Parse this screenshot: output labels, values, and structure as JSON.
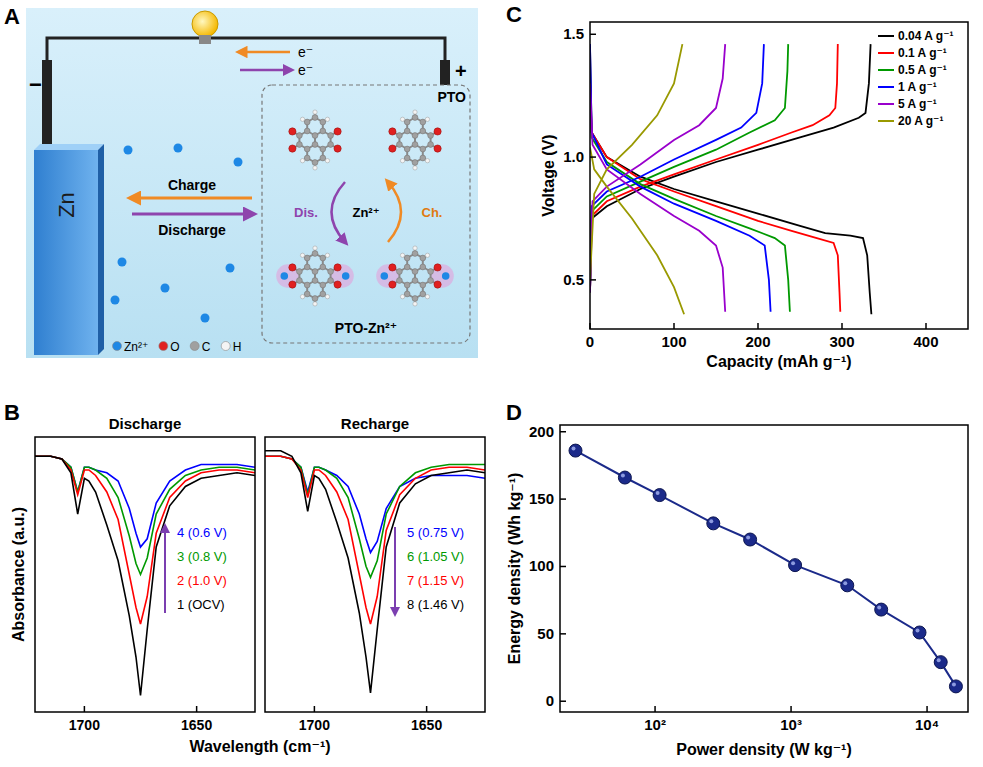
{
  "diagram": {
    "panel": "A",
    "anode_label": "Zn",
    "anode_sign": "−",
    "cathode_sign": "+",
    "electrons": [
      "e⁻",
      "e⁻"
    ],
    "charge": "Charge",
    "discharge": "Discharge",
    "cathode_material": "PTO",
    "cycle_ion": "Zn²⁺",
    "cycle_discharge": "Dis.",
    "cycle_charge": "Ch.",
    "discharged_product": "PTO-Zn²⁺",
    "legend": [
      {
        "label": "Zn²⁺",
        "color": "#1e88e5"
      },
      {
        "label": "O",
        "color": "#e02020"
      },
      {
        "label": "C",
        "color": "#a0a0a0"
      },
      {
        "label": "H",
        "color": "#f4f4f4"
      }
    ]
  },
  "chart_data": [
    {
      "type": "line",
      "panel": "B",
      "title": "Discharge",
      "x_label": "Wavelength (cm⁻¹)",
      "y_label": "Absorbance (a.u.)",
      "tick_labels": "x",
      "legend": "right",
      "x": [
        1722,
        1715,
        1710,
        1706,
        1703,
        1700,
        1698,
        1695,
        1690,
        1685,
        1680,
        1677,
        1675,
        1672,
        1668,
        1662,
        1655,
        1648,
        1640,
        1632,
        1624
      ],
      "xlim": [
        1722,
        1624
      ],
      "xticks": [
        1700,
        1650
      ],
      "ylim": [
        0,
        1
      ],
      "series": [
        {
          "name": "4 (0.6 V)",
          "color": "#0000ff",
          "values": [
            0.93,
            0.93,
            0.92,
            0.89,
            0.8,
            0.89,
            0.89,
            0.88,
            0.87,
            0.84,
            0.74,
            0.65,
            0.6,
            0.63,
            0.76,
            0.84,
            0.88,
            0.9,
            0.9,
            0.9,
            0.89
          ]
        },
        {
          "name": "3 (0.8 V)",
          "color": "#009900",
          "values": [
            0.93,
            0.93,
            0.92,
            0.89,
            0.8,
            0.89,
            0.89,
            0.88,
            0.85,
            0.78,
            0.64,
            0.54,
            0.5,
            0.56,
            0.72,
            0.81,
            0.86,
            0.88,
            0.89,
            0.89,
            0.88
          ]
        },
        {
          "name": "2 (1.0 V)",
          "color": "#ff0000",
          "values": [
            0.93,
            0.93,
            0.92,
            0.88,
            0.79,
            0.88,
            0.88,
            0.86,
            0.8,
            0.7,
            0.5,
            0.38,
            0.32,
            0.42,
            0.65,
            0.78,
            0.84,
            0.87,
            0.88,
            0.88,
            0.87
          ]
        },
        {
          "name": "1 (OCV)",
          "color": "#000000",
          "values": [
            0.93,
            0.93,
            0.92,
            0.87,
            0.72,
            0.85,
            0.84,
            0.8,
            0.68,
            0.55,
            0.35,
            0.2,
            0.06,
            0.3,
            0.6,
            0.75,
            0.82,
            0.85,
            0.86,
            0.87,
            0.86
          ]
        }
      ]
    },
    {
      "type": "line",
      "title": "Recharge",
      "tick_labels": "x",
      "legend": "right",
      "x": [
        1722,
        1715,
        1710,
        1706,
        1703,
        1700,
        1698,
        1695,
        1690,
        1685,
        1680,
        1677,
        1675,
        1672,
        1668,
        1662,
        1655,
        1648,
        1640,
        1632,
        1624
      ],
      "xlim": [
        1722,
        1624
      ],
      "xticks": [
        1700,
        1650
      ],
      "ylim": [
        0,
        1
      ],
      "series": [
        {
          "name": "5 (0.75 V)",
          "color": "#0000ff",
          "values": [
            0.93,
            0.93,
            0.92,
            0.89,
            0.8,
            0.89,
            0.89,
            0.88,
            0.86,
            0.82,
            0.72,
            0.63,
            0.58,
            0.62,
            0.74,
            0.82,
            0.85,
            0.86,
            0.86,
            0.86,
            0.85
          ]
        },
        {
          "name": "6 (1.05 V)",
          "color": "#009900",
          "values": [
            0.93,
            0.93,
            0.92,
            0.89,
            0.79,
            0.89,
            0.89,
            0.88,
            0.85,
            0.78,
            0.63,
            0.53,
            0.49,
            0.55,
            0.72,
            0.82,
            0.87,
            0.89,
            0.9,
            0.9,
            0.9
          ]
        },
        {
          "name": "7 (1.15 V)",
          "color": "#ff0000",
          "values": [
            0.93,
            0.93,
            0.92,
            0.88,
            0.78,
            0.88,
            0.88,
            0.86,
            0.8,
            0.7,
            0.5,
            0.38,
            0.32,
            0.42,
            0.66,
            0.79,
            0.85,
            0.88,
            0.89,
            0.89,
            0.88
          ]
        },
        {
          "name": "8 (1.46 V)",
          "color": "#000000",
          "values": [
            0.95,
            0.95,
            0.93,
            0.87,
            0.73,
            0.86,
            0.85,
            0.81,
            0.69,
            0.56,
            0.36,
            0.2,
            0.07,
            0.3,
            0.6,
            0.76,
            0.83,
            0.86,
            0.87,
            0.88,
            0.87
          ]
        }
      ]
    },
    {
      "type": "line",
      "panel": "C",
      "x_label": "Capacity (mAh g⁻¹)",
      "y_label": "Voltage (V)",
      "legend": "upper right",
      "xlim": [
        0,
        450
      ],
      "xticks": [
        0,
        100,
        200,
        300,
        400
      ],
      "ylim": [
        0.3,
        1.55
      ],
      "yticks": [
        0.5,
        {
          "value": 1,
          "label": "1.0"
        },
        1.5
      ],
      "series": [
        {
          "name": "0.04 A g⁻¹",
          "color": "#000000",
          "x": [
            0,
            2,
            20,
            60,
            100,
            150,
            200,
            250,
            280,
            310,
            325,
            330,
            333,
            335,
            null,
            0,
            2,
            20,
            60,
            100,
            150,
            200,
            250,
            290,
            320,
            328,
            332,
            334
          ],
          "values": [
            1.45,
            1.1,
            1.0,
            0.92,
            0.87,
            0.82,
            0.77,
            0.72,
            0.69,
            0.68,
            0.67,
            0.6,
            0.45,
            0.36,
            null,
            0.45,
            0.75,
            0.8,
            0.87,
            0.92,
            0.98,
            1.03,
            1.08,
            1.12,
            1.16,
            1.18,
            1.3,
            1.46
          ]
        },
        {
          "name": "0.1 A g⁻¹",
          "color": "#ff0000",
          "x": [
            0,
            2,
            20,
            60,
            100,
            150,
            200,
            240,
            270,
            290,
            295,
            297,
            298,
            null,
            0,
            2,
            20,
            60,
            100,
            150,
            200,
            240,
            265,
            285,
            292,
            294,
            295
          ],
          "values": [
            1.3,
            1.1,
            1.0,
            0.91,
            0.86,
            0.8,
            0.74,
            0.7,
            0.67,
            0.65,
            0.6,
            0.45,
            0.37,
            null,
            0.45,
            0.76,
            0.82,
            0.88,
            0.93,
            0.99,
            1.05,
            1.1,
            1.13,
            1.17,
            1.2,
            1.3,
            1.46
          ]
        },
        {
          "name": "0.5 A g⁻¹",
          "color": "#009900",
          "x": [
            0,
            2,
            20,
            60,
            100,
            150,
            190,
            220,
            232,
            236,
            238,
            null,
            0,
            2,
            20,
            60,
            100,
            150,
            190,
            220,
            232,
            235,
            236
          ],
          "values": [
            1.3,
            1.08,
            0.98,
            0.89,
            0.83,
            0.76,
            0.71,
            0.67,
            0.64,
            0.5,
            0.37,
            null,
            0.45,
            0.78,
            0.84,
            0.9,
            0.96,
            1.03,
            1.1,
            1.15,
            1.2,
            1.35,
            1.46
          ]
        },
        {
          "name": "1 A g⁻¹",
          "color": "#0000ff",
          "x": [
            0,
            2,
            20,
            60,
            100,
            150,
            190,
            208,
            213,
            215,
            null,
            0,
            2,
            20,
            60,
            100,
            150,
            180,
            198,
            205,
            207
          ],
          "values": [
            1.46,
            1.1,
            0.97,
            0.88,
            0.81,
            0.74,
            0.68,
            0.64,
            0.5,
            0.37,
            null,
            0.45,
            0.8,
            0.86,
            0.92,
            0.99,
            1.07,
            1.12,
            1.18,
            1.3,
            1.46
          ]
        },
        {
          "name": "5 A g⁻¹",
          "color": "#9900cc",
          "x": [
            0,
            3,
            20,
            60,
            100,
            130,
            150,
            158,
            161,
            null,
            0,
            3,
            20,
            60,
            100,
            130,
            150,
            158,
            161
          ],
          "values": [
            1.3,
            1.05,
            0.95,
            0.85,
            0.76,
            0.7,
            0.64,
            0.55,
            0.37,
            null,
            0.45,
            0.82,
            0.88,
            0.97,
            1.07,
            1.13,
            1.2,
            1.32,
            1.46
          ]
        },
        {
          "name": "20 A g⁻¹",
          "color": "#999900",
          "x": [
            0,
            5,
            20,
            50,
            80,
            100,
            112,
            null,
            0,
            5,
            20,
            50,
            80,
            100,
            110
          ],
          "values": [
            1.04,
            0.95,
            0.88,
            0.75,
            0.6,
            0.47,
            0.36,
            null,
            0.5,
            0.85,
            0.95,
            1.05,
            1.17,
            1.3,
            1.46
          ]
        }
      ]
    },
    {
      "type": "line",
      "panel": "D",
      "marker": "circle",
      "log": "x",
      "x_label": "Power density (W kg⁻¹)",
      "y_label": "Energy density (Wh kg⁻¹)",
      "xlim": [
        20,
        20000
      ],
      "xticks": [
        {
          "value": 100,
          "label": "10²"
        },
        {
          "value": 1000,
          "label": "10³"
        },
        {
          "value": 10000,
          "label": "10⁴"
        }
      ],
      "ylim": [
        -8,
        205
      ],
      "yticks": [
        0,
        50,
        100,
        150,
        200
      ],
      "series": [
        {
          "color": "#1b2a8a",
          "x": [
            26,
            60,
            108,
            268,
            500,
            1070,
            2590,
            4600,
            8800,
            12600,
            16300
          ],
          "values": [
            186,
            166,
            153,
            132,
            120,
            101,
            86,
            68,
            51,
            29,
            11
          ]
        }
      ]
    }
  ]
}
